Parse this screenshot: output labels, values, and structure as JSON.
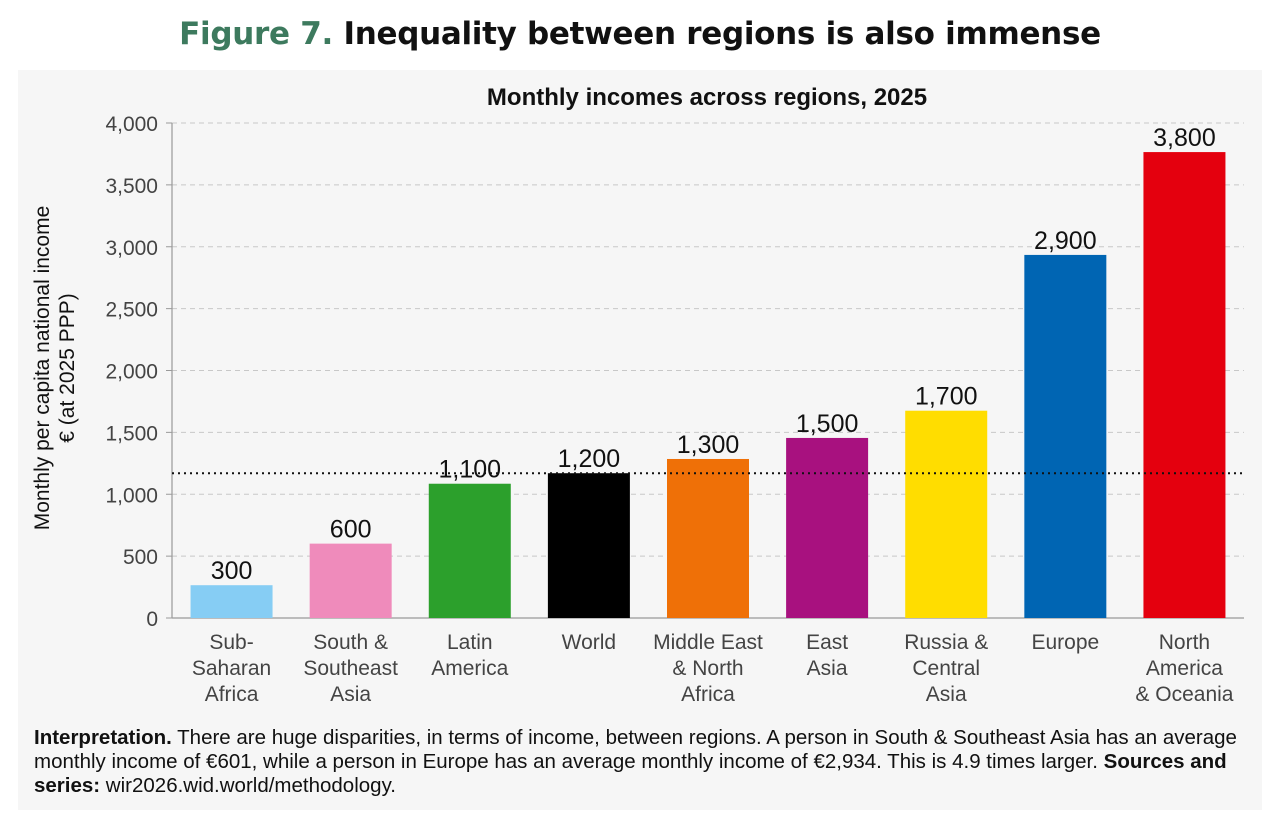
{
  "figure": {
    "number": "Figure 7.",
    "title": "Inequality between regions is also immense"
  },
  "chart_data": {
    "type": "bar",
    "title": "Monthly incomes across regions, 2025",
    "ylabel_line1": "Monthly per capita national income",
    "ylabel_line2": "€ (at 2025 PPP)",
    "xlabel": "",
    "ylim": [
      0,
      4000
    ],
    "yticks": [
      0,
      500,
      1000,
      1500,
      2000,
      2500,
      3000,
      3500,
      4000
    ],
    "ytick_labels": [
      "0",
      "500",
      "1,000",
      "1,500",
      "2,000",
      "2,500",
      "3,000",
      "3,500",
      "4,000"
    ],
    "grid": true,
    "reference_line": {
      "value": 1170,
      "style": "dotted"
    },
    "categories": [
      [
        "Sub-",
        "Saharan",
        "Africa"
      ],
      [
        "South &",
        "Southeast",
        "Asia"
      ],
      [
        "Latin",
        "America"
      ],
      [
        "World"
      ],
      [
        "Middle East",
        "& North",
        "Africa"
      ],
      [
        "East",
        "Asia"
      ],
      [
        "Russia &",
        "Central",
        "Asia"
      ],
      [
        "Europe"
      ],
      [
        "North",
        "America",
        "& Oceania"
      ]
    ],
    "values": [
      265,
      601,
      1085,
      1170,
      1285,
      1455,
      1675,
      2934,
      3765
    ],
    "data_labels": [
      "300",
      "600",
      "1,100",
      "1,200",
      "1,300",
      "1,500",
      "1,700",
      "2,900",
      "3,800"
    ],
    "colors": [
      "#86cdf4",
      "#ef8bbb",
      "#2ca02c",
      "#000000",
      "#ef7007",
      "#a8117f",
      "#ffdd00",
      "#0065b3",
      "#e4000e"
    ]
  },
  "caption": {
    "interp_label": "Interpretation.",
    "interp_text": " There are huge disparities, in terms of income, between regions. A person in South & Southeast Asia has an average monthly income of €601, while a person in Europe has an average monthly income of €2,934. This is 4.9 times larger. ",
    "sources_label": "Sources and series:",
    "sources_text": " wir2026.wid.world/methodology."
  }
}
